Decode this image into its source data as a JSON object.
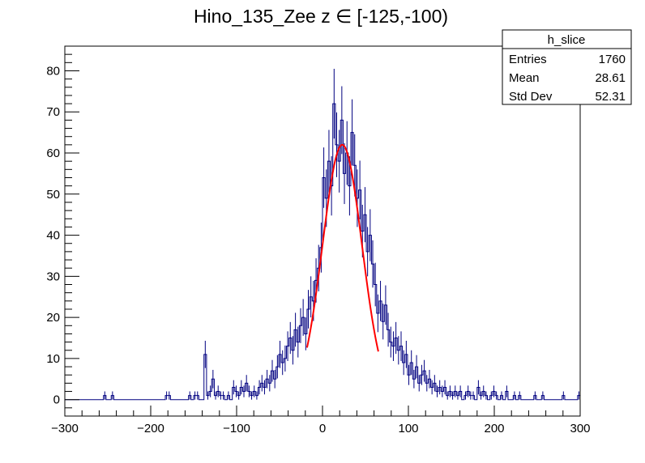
{
  "chart_data": {
    "type": "histogram",
    "title": "Hino_135_Zee z  ∈ [-125,-100)",
    "xlabel": "",
    "ylabel": "",
    "xlim": [
      -300,
      300
    ],
    "ylim": [
      -4,
      86
    ],
    "bin_width": 3,
    "x_ticks": [
      "−300",
      "−200",
      "−100",
      "0",
      "100",
      "200",
      "300"
    ],
    "y_ticks": [
      "0",
      "10",
      "20",
      "30",
      "40",
      "50",
      "60",
      "70",
      "80"
    ],
    "grid": false,
    "line_color": "#000080",
    "fit_color": "#ff0000",
    "fit": {
      "type": "gaussian",
      "amplitude": 62,
      "mean": 23,
      "sigma": 23,
      "range": [
        -18,
        65
      ]
    },
    "histogram": [
      {
        "x": -255,
        "y": 1
      },
      {
        "x": -246,
        "y": 1
      },
      {
        "x": -183,
        "y": 1
      },
      {
        "x": -180,
        "y": 1
      },
      {
        "x": -156,
        "y": 1
      },
      {
        "x": -150,
        "y": 1
      },
      {
        "x": -147,
        "y": 1
      },
      {
        "x": -138,
        "y": 11
      },
      {
        "x": -135,
        "y": 1
      },
      {
        "x": -132,
        "y": 2
      },
      {
        "x": -129,
        "y": 5
      },
      {
        "x": -126,
        "y": 1
      },
      {
        "x": -123,
        "y": 2
      },
      {
        "x": -120,
        "y": 1
      },
      {
        "x": -117,
        "y": 1
      },
      {
        "x": -111,
        "y": 1
      },
      {
        "x": -105,
        "y": 3
      },
      {
        "x": -102,
        "y": 2
      },
      {
        "x": -99,
        "y": 1
      },
      {
        "x": -96,
        "y": 3
      },
      {
        "x": -93,
        "y": 2
      },
      {
        "x": -90,
        "y": 4
      },
      {
        "x": -87,
        "y": 2
      },
      {
        "x": -84,
        "y": 1
      },
      {
        "x": -81,
        "y": 2
      },
      {
        "x": -78,
        "y": 1
      },
      {
        "x": -75,
        "y": 3
      },
      {
        "x": -72,
        "y": 4
      },
      {
        "x": -69,
        "y": 3
      },
      {
        "x": -66,
        "y": 5
      },
      {
        "x": -63,
        "y": 4
      },
      {
        "x": -60,
        "y": 7
      },
      {
        "x": -57,
        "y": 5
      },
      {
        "x": -54,
        "y": 8
      },
      {
        "x": -51,
        "y": 11
      },
      {
        "x": -48,
        "y": 9
      },
      {
        "x": -45,
        "y": 10
      },
      {
        "x": -42,
        "y": 13
      },
      {
        "x": -39,
        "y": 15
      },
      {
        "x": -36,
        "y": 12
      },
      {
        "x": -33,
        "y": 17
      },
      {
        "x": -30,
        "y": 14
      },
      {
        "x": -27,
        "y": 18
      },
      {
        "x": -24,
        "y": 20
      },
      {
        "x": -21,
        "y": 16
      },
      {
        "x": -18,
        "y": 22
      },
      {
        "x": -15,
        "y": 25
      },
      {
        "x": -12,
        "y": 24
      },
      {
        "x": -9,
        "y": 29
      },
      {
        "x": -6,
        "y": 32
      },
      {
        "x": -3,
        "y": 37
      },
      {
        "x": 0,
        "y": 54
      },
      {
        "x": 3,
        "y": 49
      },
      {
        "x": 6,
        "y": 58
      },
      {
        "x": 9,
        "y": 52
      },
      {
        "x": 12,
        "y": 72
      },
      {
        "x": 15,
        "y": 62
      },
      {
        "x": 18,
        "y": 58
      },
      {
        "x": 21,
        "y": 68
      },
      {
        "x": 24,
        "y": 55
      },
      {
        "x": 27,
        "y": 60
      },
      {
        "x": 30,
        "y": 52
      },
      {
        "x": 33,
        "y": 65
      },
      {
        "x": 36,
        "y": 57
      },
      {
        "x": 39,
        "y": 49
      },
      {
        "x": 42,
        "y": 51
      },
      {
        "x": 45,
        "y": 41
      },
      {
        "x": 48,
        "y": 45
      },
      {
        "x": 51,
        "y": 36
      },
      {
        "x": 54,
        "y": 40
      },
      {
        "x": 57,
        "y": 33
      },
      {
        "x": 60,
        "y": 28
      },
      {
        "x": 63,
        "y": 21
      },
      {
        "x": 66,
        "y": 24
      },
      {
        "x": 69,
        "y": 19
      },
      {
        "x": 72,
        "y": 23
      },
      {
        "x": 75,
        "y": 17
      },
      {
        "x": 78,
        "y": 14
      },
      {
        "x": 81,
        "y": 13
      },
      {
        "x": 84,
        "y": 15
      },
      {
        "x": 87,
        "y": 12
      },
      {
        "x": 90,
        "y": 13
      },
      {
        "x": 93,
        "y": 9
      },
      {
        "x": 96,
        "y": 11
      },
      {
        "x": 99,
        "y": 6
      },
      {
        "x": 102,
        "y": 9
      },
      {
        "x": 105,
        "y": 5
      },
      {
        "x": 108,
        "y": 8
      },
      {
        "x": 111,
        "y": 4
      },
      {
        "x": 114,
        "y": 6
      },
      {
        "x": 117,
        "y": 7
      },
      {
        "x": 120,
        "y": 4
      },
      {
        "x": 123,
        "y": 5
      },
      {
        "x": 126,
        "y": 3
      },
      {
        "x": 129,
        "y": 4
      },
      {
        "x": 132,
        "y": 2
      },
      {
        "x": 135,
        "y": 3
      },
      {
        "x": 138,
        "y": 2
      },
      {
        "x": 141,
        "y": 3
      },
      {
        "x": 144,
        "y": 1
      },
      {
        "x": 147,
        "y": 2
      },
      {
        "x": 150,
        "y": 1
      },
      {
        "x": 153,
        "y": 2
      },
      {
        "x": 156,
        "y": 1
      },
      {
        "x": 159,
        "y": 2
      },
      {
        "x": 165,
        "y": 1
      },
      {
        "x": 168,
        "y": 2
      },
      {
        "x": 171,
        "y": 1
      },
      {
        "x": 174,
        "y": 1
      },
      {
        "x": 180,
        "y": 3
      },
      {
        "x": 183,
        "y": 1
      },
      {
        "x": 186,
        "y": 2
      },
      {
        "x": 189,
        "y": 1
      },
      {
        "x": 195,
        "y": 1
      },
      {
        "x": 198,
        "y": 2
      },
      {
        "x": 201,
        "y": 1
      },
      {
        "x": 207,
        "y": 1
      },
      {
        "x": 213,
        "y": 2
      },
      {
        "x": 222,
        "y": 1
      },
      {
        "x": 228,
        "y": 1
      },
      {
        "x": 246,
        "y": 1
      },
      {
        "x": 255,
        "y": 1
      },
      {
        "x": 279,
        "y": 1
      },
      {
        "x": 297,
        "y": 1
      }
    ]
  },
  "stats_box": {
    "name": "h_slice",
    "rows": [
      {
        "label": "Entries",
        "value": "1760"
      },
      {
        "label": "Mean",
        "value": "28.61"
      },
      {
        "label": "Std Dev",
        "value": "52.31"
      }
    ]
  }
}
